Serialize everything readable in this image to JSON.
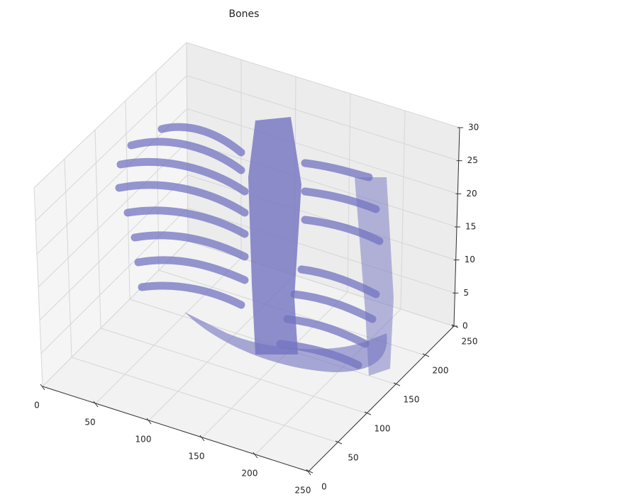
{
  "chart_data": {
    "type": "voxels",
    "title": "Bones",
    "xlim": [
      0,
      250
    ],
    "ylim": [
      0,
      250
    ],
    "zlim": [
      0,
      30
    ],
    "xticks": [
      0,
      50,
      100,
      150,
      200,
      250
    ],
    "yticks": [
      0,
      50,
      100,
      150,
      200,
      250
    ],
    "zticks": [
      0,
      5,
      10,
      15,
      20,
      25,
      30
    ],
    "color": "#7373c2",
    "grid": true
  }
}
